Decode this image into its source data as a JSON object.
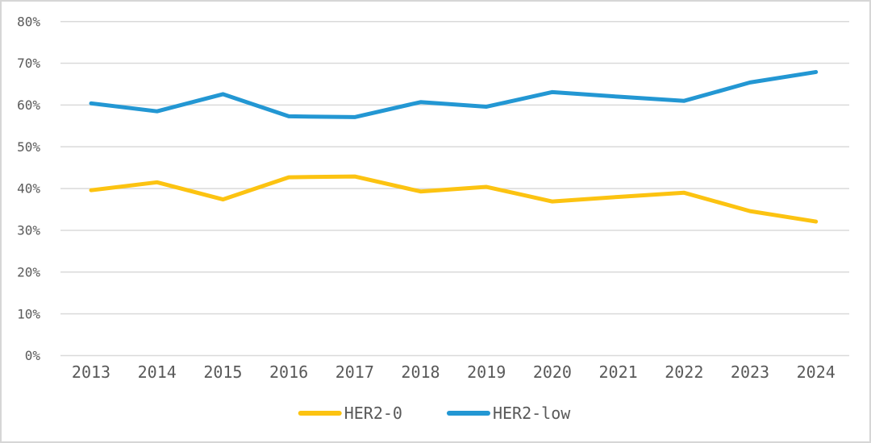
{
  "chart_data": {
    "type": "line",
    "title": "",
    "xlabel": "",
    "ylabel": "",
    "x": [
      2013,
      2014,
      2015,
      2016,
      2017,
      2018,
      2019,
      2020,
      2021,
      2022,
      2023,
      2024
    ],
    "series": [
      {
        "name": "HER2-0",
        "color": "#fcc311",
        "values": [
          39.6,
          41.5,
          37.4,
          42.7,
          42.9,
          39.3,
          40.4,
          36.9,
          38.0,
          39.0,
          34.6,
          32.1
        ]
      },
      {
        "name": "HER2-low",
        "color": "#2397d3",
        "values": [
          60.4,
          58.5,
          62.6,
          57.3,
          57.1,
          60.7,
          59.6,
          63.1,
          62.0,
          61.0,
          65.4,
          67.9
        ]
      }
    ],
    "ylim": [
      0,
      80
    ],
    "ytick_step": 10,
    "ytick_labels": [
      "0%",
      "10%",
      "20%",
      "30%",
      "40%",
      "50%",
      "60%",
      "70%",
      "80%"
    ],
    "xtick_labels": [
      "2013",
      "2014",
      "2015",
      "2016",
      "2017",
      "2018",
      "2019",
      "2020",
      "2021",
      "2022",
      "2023",
      "2024"
    ],
    "grid": "horizontal",
    "legend_position": "bottom",
    "legend_items": [
      "HER2-0",
      "HER2-low"
    ]
  },
  "colors": {
    "gridline": "#dadada",
    "tick_label": "#595959",
    "frame_border": "#d6d6d6",
    "background": "#ffffff"
  }
}
